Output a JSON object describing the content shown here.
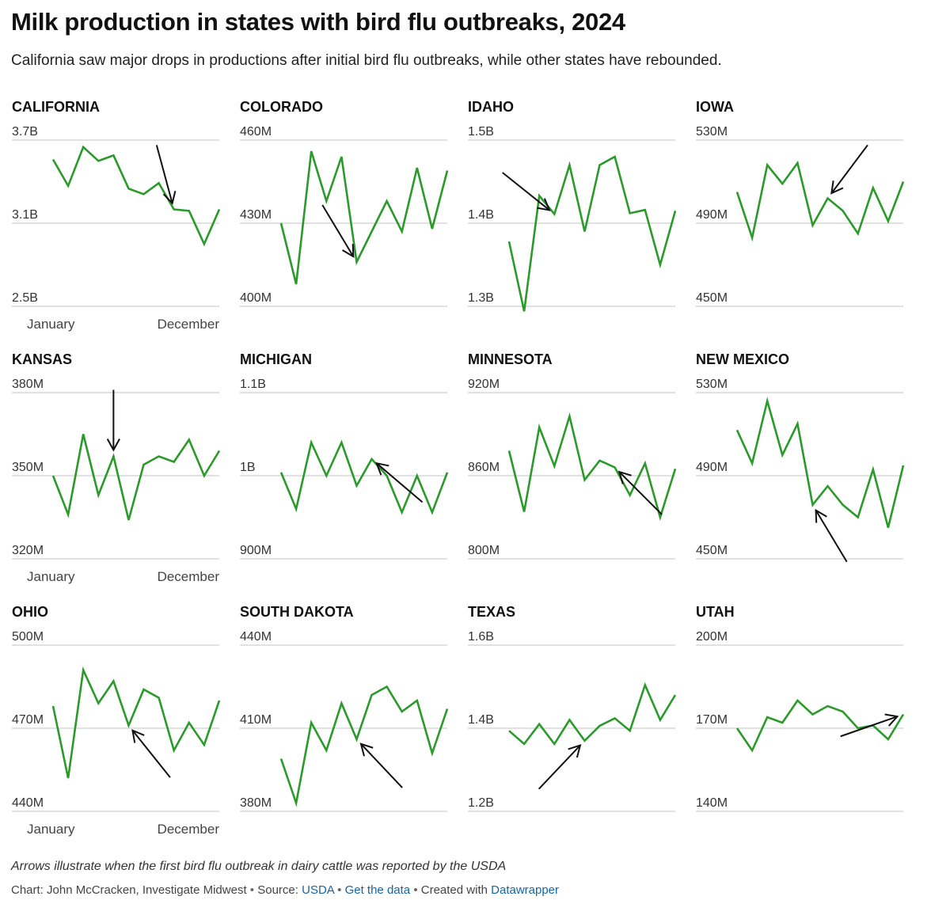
{
  "header": {
    "title": "Milk production in states with bird flu outbreaks, 2024",
    "subtitle": "California saw major drops in productions after initial bird flu outbreaks, while other states have rebounded."
  },
  "colors": {
    "line": "#2a9a2a",
    "grid": "#cfcfcf",
    "arrow": "#111111",
    "link": "#1565a8"
  },
  "x_labels": {
    "start": "January",
    "end": "December"
  },
  "chart_data": [
    {
      "type": "line",
      "title": "CALIFORNIA",
      "y_ticks": [
        "3.7B",
        "3.1B",
        "2.5B"
      ],
      "ylim": [
        2.5,
        3.7
      ],
      "unit": "B",
      "values": [
        3.56,
        3.37,
        3.65,
        3.55,
        3.59,
        3.35,
        3.31,
        3.39,
        3.2,
        3.19,
        2.95,
        3.2
      ],
      "arrow_month": 8
    },
    {
      "type": "line",
      "title": "COLORADO",
      "y_ticks": [
        "460M",
        "430M",
        "400M"
      ],
      "ylim": [
        400,
        460
      ],
      "unit": "M",
      "values": [
        430,
        408,
        456,
        438,
        454,
        416,
        427,
        438,
        427,
        450,
        428,
        449
      ],
      "arrow_month": 5
    },
    {
      "type": "line",
      "title": "IDAHO",
      "y_ticks": [
        "1.5B",
        "1.4B",
        "1.3B"
      ],
      "ylim": [
        1.3,
        1.5
      ],
      "unit": "B",
      "values": [
        1.378,
        1.294,
        1.433,
        1.411,
        1.47,
        1.39,
        1.47,
        1.48,
        1.412,
        1.416,
        1.35,
        1.415
      ],
      "arrow_month": 3
    },
    {
      "type": "line",
      "title": "IOWA",
      "y_ticks": [
        "530M",
        "490M",
        "450M"
      ],
      "ylim": [
        450,
        530
      ],
      "unit": "M",
      "values": [
        505,
        483,
        518,
        509,
        519,
        489,
        502,
        496,
        485,
        507,
        491,
        510
      ],
      "arrow_month": 6
    },
    {
      "type": "line",
      "title": "KANSAS",
      "y_ticks": [
        "380M",
        "350M",
        "320M"
      ],
      "ylim": [
        320,
        380
      ],
      "unit": "M",
      "values": [
        350,
        336,
        365,
        343,
        357,
        334,
        354,
        357,
        355,
        363,
        350,
        359
      ],
      "arrow_month": 4
    },
    {
      "type": "line",
      "title": "MICHIGAN",
      "y_ticks": [
        "1.1B",
        "1B",
        "900M"
      ],
      "ylim": [
        0.9,
        1.1
      ],
      "unit": "B",
      "values": [
        1.004,
        0.96,
        1.04,
        1.0,
        1.04,
        0.988,
        1.02,
        1.0,
        0.956,
        1.0,
        0.956,
        1.004
      ],
      "arrow_month": 6
    },
    {
      "type": "line",
      "title": "MINNESOTA",
      "y_ticks": [
        "920M",
        "860M",
        "800M"
      ],
      "ylim": [
        800,
        920
      ],
      "unit": "M",
      "values": [
        878,
        834,
        895,
        867,
        903,
        857,
        871,
        866,
        846,
        869,
        830,
        865
      ],
      "arrow_month": 7
    },
    {
      "type": "line",
      "title": "NEW MEXICO",
      "y_ticks": [
        "530M",
        "490M",
        "450M"
      ],
      "ylim": [
        450,
        530
      ],
      "unit": "M",
      "values": [
        512,
        496,
        526,
        500,
        515,
        476,
        485,
        476,
        470,
        493,
        465,
        495
      ],
      "arrow_month": 5
    },
    {
      "type": "line",
      "title": "OHIO",
      "y_ticks": [
        "500M",
        "470M",
        "440M"
      ],
      "ylim": [
        440,
        500
      ],
      "unit": "M",
      "values": [
        478,
        452,
        491,
        479,
        487,
        471,
        484,
        481,
        462,
        472,
        464,
        480
      ],
      "arrow_month": 5
    },
    {
      "type": "line",
      "title": "SOUTH DAKOTA",
      "y_ticks": [
        "440M",
        "410M",
        "380M"
      ],
      "ylim": [
        380,
        440
      ],
      "unit": "M",
      "values": [
        399,
        383,
        412,
        402,
        419,
        406,
        422,
        425,
        416,
        420,
        401,
        417
      ],
      "arrow_month": 5
    },
    {
      "type": "line",
      "title": "TEXAS",
      "y_ticks": [
        "1.6B",
        "1.4B",
        "1.2B"
      ],
      "ylim": [
        1.2,
        1.6
      ],
      "unit": "B",
      "values": [
        1.394,
        1.362,
        1.41,
        1.362,
        1.42,
        1.37,
        1.406,
        1.424,
        1.394,
        1.504,
        1.42,
        1.48
      ],
      "arrow_month": 5
    },
    {
      "type": "line",
      "title": "UTAH",
      "y_ticks": [
        "200M",
        "170M",
        "140M"
      ],
      "ylim": [
        140,
        200
      ],
      "unit": "M",
      "values": [
        170,
        162,
        174,
        172,
        180,
        175,
        178,
        176,
        170,
        171,
        166,
        175
      ],
      "arrow_month": 11
    }
  ],
  "footer": {
    "note": "Arrows illustrate when the first bird flu outbreak in dairy cattle was reported by the USDA",
    "credit_prefix": "Chart: John McCracken, Investigate Midwest",
    "source_label": "Source:",
    "source_link": "USDA",
    "data_link": "Get the data",
    "created_prefix": "Created with",
    "created_link": "Datawrapper",
    "separator": "•"
  }
}
